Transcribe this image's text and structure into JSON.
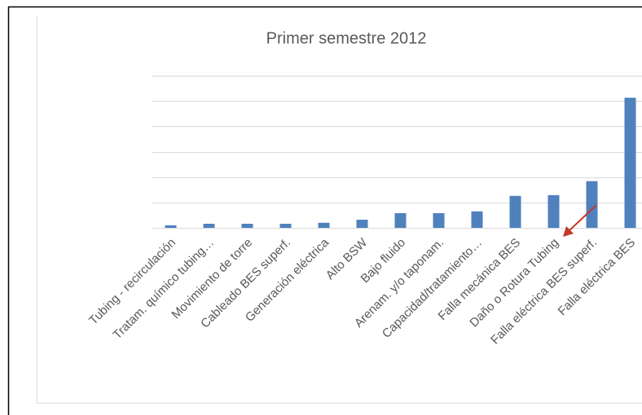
{
  "chart_data": {
    "type": "bar",
    "title": "Primer semestre 2012",
    "categories": [
      "Tubing - recirculación",
      "Tratam. químico tubing…",
      "Movimiento de torre",
      "Cableado BES superf.",
      "Generación eléctrica",
      "Alto BSW",
      "Bajo fluido",
      "Arenam. y/o taponam.",
      "Capacidad/tratamiento…",
      "Falla mecánica BES",
      "Daño o Rotura Tubing",
      "Falla eléctrica BES superf.",
      "Falla eléctrica BES"
    ],
    "values": [
      0.1,
      0.16,
      0.16,
      0.16,
      0.2,
      0.32,
      0.58,
      0.58,
      0.65,
      1.26,
      1.29,
      1.84,
      5.13
    ],
    "color": "#4f81bd",
    "ylim": [
      0,
      6
    ],
    "yticks": [
      0,
      1,
      2,
      3,
      4,
      5,
      6
    ],
    "grid": true
  }
}
